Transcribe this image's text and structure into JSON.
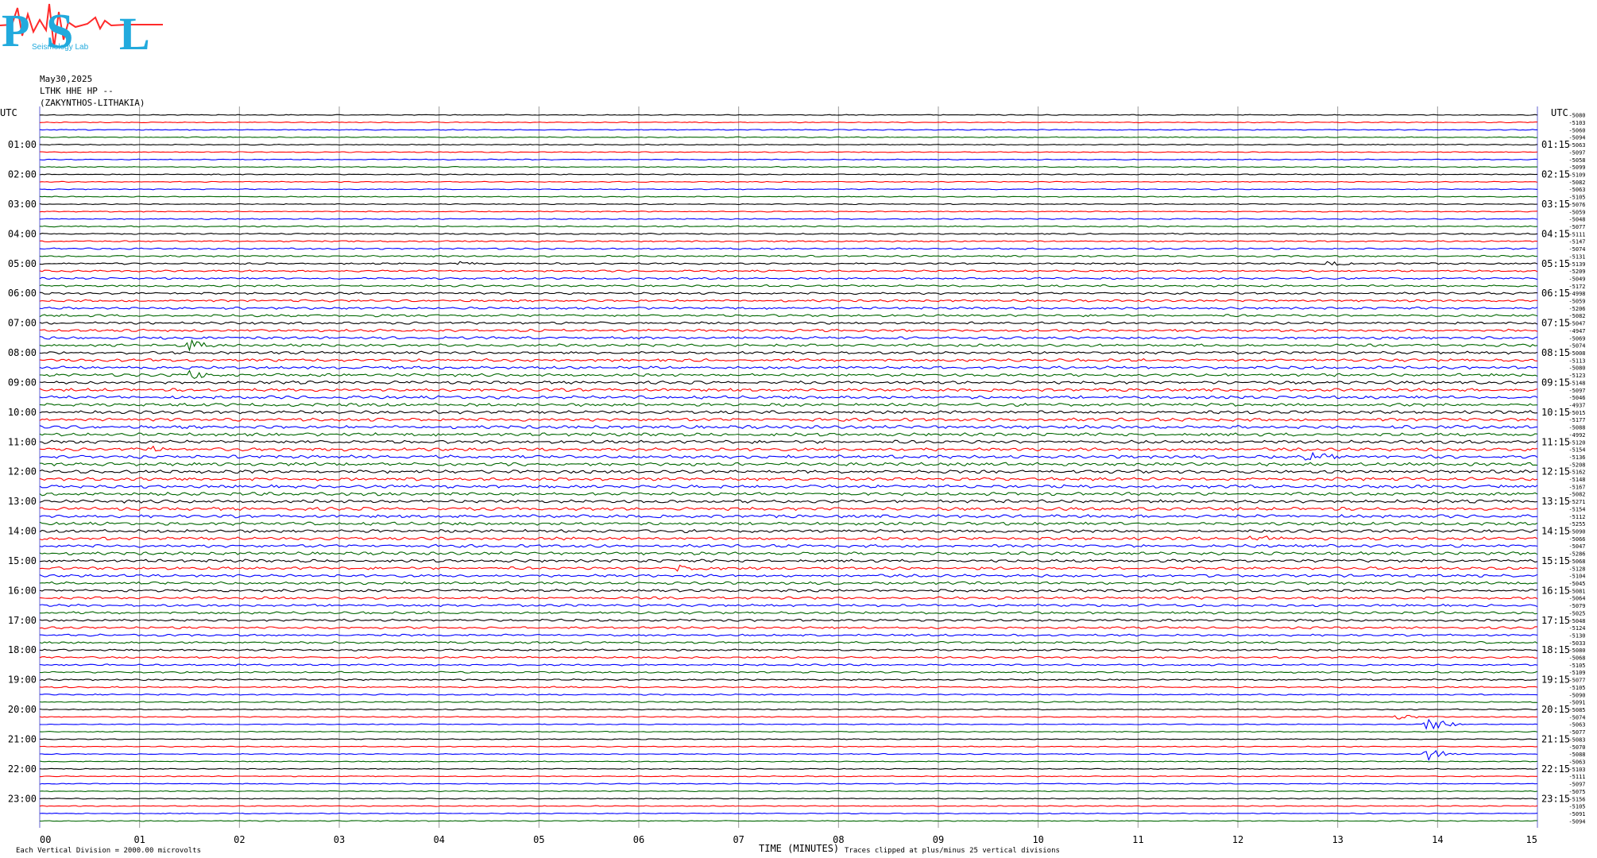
{
  "logo": {
    "letters": [
      "P",
      "S",
      "L"
    ],
    "subtitle": "Seismology Lab",
    "colors": {
      "letters": "#22aadd",
      "trace": "#ff2a2a"
    }
  },
  "header": {
    "date": "May30,2025",
    "station": "LTHK HHE HP --",
    "location": "(ZAKYNTHOS-LITHAKIA)"
  },
  "footer": {
    "scale_note": "Each Vertical Division = 2000.00 microvolts",
    "clip_note": "Traces clipped at plus/minus 25 vertical divisions",
    "xaxis_title": "TIME (MINUTES)"
  },
  "chart_data": {
    "type": "line",
    "title": "",
    "xlabel": "TIME (MINUTES)",
    "ylabel": "UTC",
    "xlim": [
      0,
      15
    ],
    "x_ticks": [
      "00",
      "01",
      "02",
      "03",
      "04",
      "05",
      "06",
      "07",
      "08",
      "09",
      "10",
      "11",
      "12",
      "13",
      "14",
      "15"
    ],
    "left_axis_label": "UTC",
    "right_axis_label": "UTC",
    "left_hour_labels": [
      "01:00",
      "02:00",
      "03:00",
      "04:00",
      "05:00",
      "06:00",
      "07:00",
      "08:00",
      "09:00",
      "10:00",
      "11:00",
      "12:00",
      "13:00",
      "14:00",
      "15:00",
      "16:00",
      "17:00",
      "18:00",
      "19:00",
      "20:00",
      "21:00",
      "22:00",
      "23:00"
    ],
    "right_hour_labels": [
      "01:15",
      "02:15",
      "03:15",
      "04:15",
      "05:15",
      "06:15",
      "07:15",
      "08:15",
      "09:15",
      "10:15",
      "11:15",
      "12:15",
      "13:15",
      "14:15",
      "15:15",
      "16:15",
      "17:15",
      "18:15",
      "19:15",
      "20:15",
      "21:15",
      "22:15",
      "23:15"
    ],
    "trace_color_cycle": [
      "#000000",
      "#ff0000",
      "#0000ff",
      "#006600"
    ],
    "trace_count": 96,
    "minutes_per_trace": 15,
    "right_trace_values": [
      "-5080",
      "-5103",
      "-5060",
      "-5094",
      "-5063",
      "-5097",
      "-5058",
      "-5099",
      "-5109",
      "-5082",
      "-5063",
      "-5105",
      "-5076",
      "-5059",
      "-5048",
      "-5077",
      "-5111",
      "-5147",
      "-5074",
      "-5131",
      "-5139",
      "-5209",
      "-5049",
      "-5172",
      "-4998",
      "-5059",
      "-5206",
      "-5082",
      "-5047",
      "-4947",
      "-5069",
      "-5074",
      "-5008",
      "-5113",
      "-5080",
      "-5123",
      "-5148",
      "-5097",
      "-5046",
      "-4937",
      "-5015",
      "-5177",
      "-5088",
      "-4992",
      "-5120",
      "-5154",
      "-5136",
      "-5208",
      "-5162",
      "-5148",
      "-5167",
      "-5082",
      "-5271",
      "-5154",
      "-5112",
      "-5255",
      "-5090",
      "-5066",
      "-5047",
      "-5286",
      "-5068",
      "-5128",
      "-5104",
      "-5045",
      "-5081",
      "-5064",
      "-5079",
      "-5025",
      "-5048",
      "-5124",
      "-5130",
      "-5033",
      "-5080",
      "-5068",
      "-5105",
      "-5109",
      "-5077",
      "-5105",
      "-5090",
      "-5091",
      "-5085",
      "-5074",
      "-5063",
      "-5077",
      "-5083",
      "-5070",
      "-5088",
      "-5063",
      "-5103",
      "-5111",
      "-5097",
      "-5075",
      "-5156",
      "-5105",
      "-5091",
      "-5094"
    ],
    "events": [
      {
        "trace": 31,
        "minute": 1.5,
        "amplitude": 3.2
      },
      {
        "trace": 35,
        "minute": 1.5,
        "amplitude": 2.5
      },
      {
        "trace": 45,
        "minute": 1.1,
        "amplitude": 2.0
      },
      {
        "trace": 46,
        "minute": 12.7,
        "amplitude": 2.2
      },
      {
        "trace": 57,
        "minute": 12.1,
        "amplitude": 1.6
      },
      {
        "trace": 61,
        "minute": 6.4,
        "amplitude": 2.2
      },
      {
        "trace": 82,
        "minute": 13.9,
        "amplitude": 3.5
      },
      {
        "trace": 86,
        "minute": 13.9,
        "amplitude": 3.0
      },
      {
        "trace": 81,
        "minute": 13.6,
        "amplitude": 1.5
      },
      {
        "trace": 20,
        "minute": 4.2,
        "amplitude": 1.2
      },
      {
        "trace": 20,
        "minute": 12.9,
        "amplitude": 1.2
      }
    ]
  }
}
